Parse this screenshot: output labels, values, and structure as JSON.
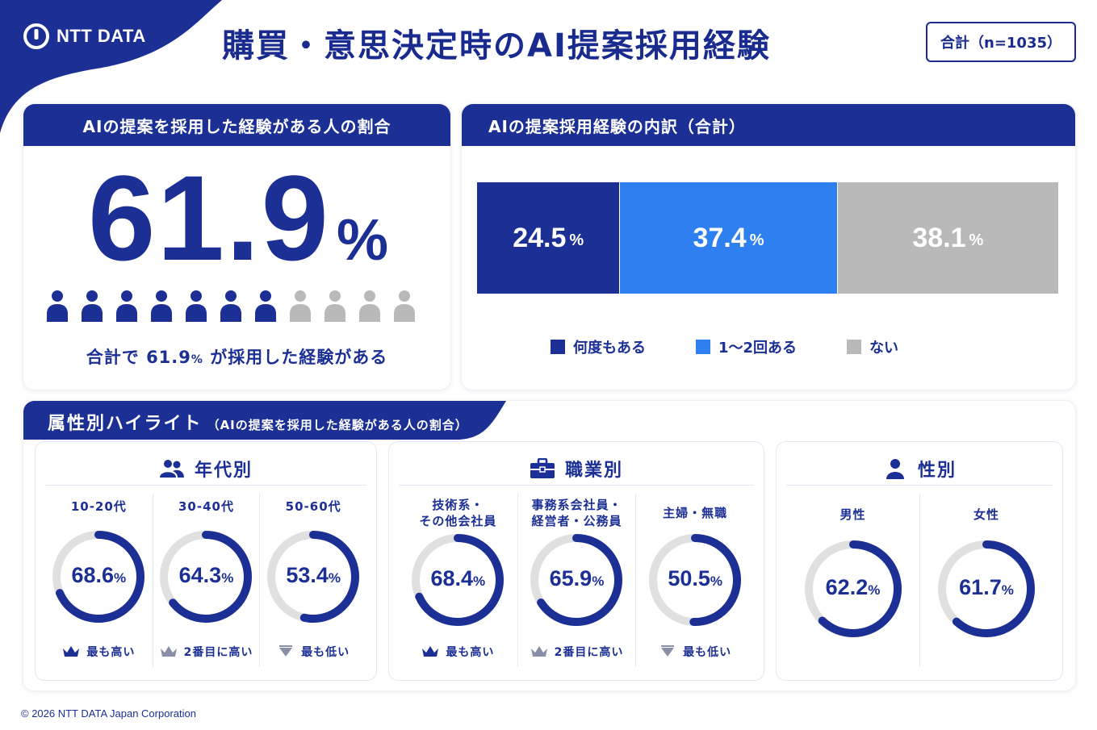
{
  "header": {
    "logo_text": "NTT DATA",
    "title": "購買・意思決定時のAI提案採用経験",
    "total_badge": "合計（n=1035）"
  },
  "colors": {
    "navy": "#1b2f95",
    "blue": "#2e7ff0",
    "gray": "#b9b9b9",
    "ring_track": "#e0e0e0"
  },
  "left_card": {
    "header": "AIの提案を採用した経験がある人の割合",
    "big_value": "61.9",
    "big_unit": "%",
    "people_total": 11,
    "people_filled": 7,
    "summary_pre": "合計で",
    "summary_value": "61.9",
    "summary_unit": "%",
    "summary_post": "が採用した経験がある"
  },
  "right_card": {
    "header": "AIの提案採用経験の内訳（合計）"
  },
  "section": {
    "title": "属性別ハイライト",
    "subtitle": "（AIの提案を採用した経験がある人の割合）"
  },
  "groups": {
    "age": {
      "title": "年代別",
      "icon": "people-group-icon"
    },
    "job": {
      "title": "職業別",
      "icon": "briefcase-icon"
    },
    "gender": {
      "title": "性別",
      "icon": "person-icon"
    }
  },
  "chart_data": [
    {
      "type": "bar",
      "stacked": true,
      "orientation": "horizontal",
      "categories": [
        "合計"
      ],
      "unit": "%",
      "series": [
        {
          "name": "何度もある",
          "values": [
            24.5
          ]
        },
        {
          "name": "1〜2回ある",
          "values": [
            37.4
          ]
        },
        {
          "name": "ない",
          "values": [
            38.1
          ]
        }
      ],
      "legend": "bottom"
    },
    {
      "type": "pie",
      "group": "年代別",
      "categories": [
        "10-20代",
        "30-40代",
        "50-60代"
      ],
      "values": [
        68.6,
        64.3,
        53.4
      ],
      "unit": "%",
      "badges": [
        "最も高い",
        "2番目に高い",
        "最も低い"
      ]
    },
    {
      "type": "pie",
      "group": "職業別",
      "categories": [
        "技術系・\nその他会社員",
        "事務系会社員・\n経営者・公務員",
        "主婦・無職"
      ],
      "values": [
        68.4,
        65.9,
        50.5
      ],
      "unit": "%",
      "badges": [
        "最も高い",
        "2番目に高い",
        "最も低い"
      ]
    },
    {
      "type": "pie",
      "group": "性別",
      "categories": [
        "男性",
        "女性"
      ],
      "values": [
        62.2,
        61.7
      ],
      "unit": "%",
      "badges": [
        "",
        ""
      ]
    }
  ],
  "footer": "© 2026 NTT DATA Japan Corporation"
}
